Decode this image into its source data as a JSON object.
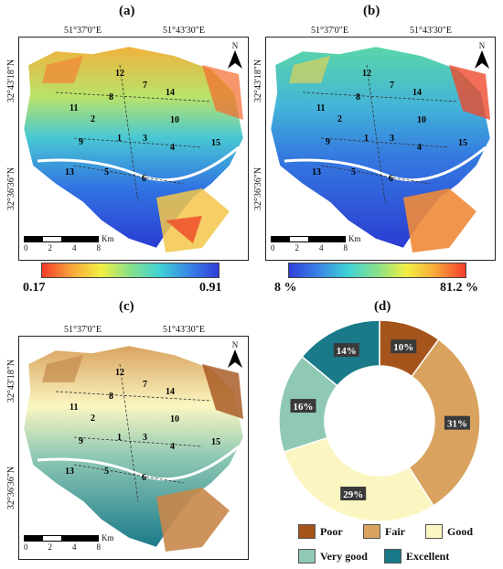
{
  "panels": {
    "a": {
      "label": "(a)"
    },
    "b": {
      "label": "(b)"
    },
    "c": {
      "label": "(c)"
    },
    "d": {
      "label": "(d)"
    }
  },
  "coords": {
    "lon1": "51°37'0\"E",
    "lon2": "51°43'30\"E",
    "lat1": "32°43'18\"N",
    "lat2": "32°36'36\"N"
  },
  "north_label": "N",
  "scale_bar": {
    "ticks": [
      "0",
      "2",
      "4",
      "8"
    ],
    "unit": "Km"
  },
  "district_numbers": [
    "1",
    "2",
    "3",
    "4",
    "5",
    "6",
    "7",
    "8",
    "9",
    "10",
    "11",
    "12",
    "13",
    "14",
    "15"
  ],
  "colorbar_a": {
    "min_label": "0.17",
    "max_label": "0.91",
    "colors": [
      "#f53b2a",
      "#f7a53a",
      "#f3ef43",
      "#88e08a",
      "#3fd2d6",
      "#3a84e6",
      "#2f3fd8"
    ]
  },
  "colorbar_b": {
    "min_label": "8 %",
    "max_label": "81.2 %",
    "colors": [
      "#2f3fd8",
      "#3a84e6",
      "#3fd2d6",
      "#88e08a",
      "#f3ef43",
      "#f7a53a",
      "#f53b2a"
    ]
  },
  "chart_data": {
    "type": "pie",
    "subtype": "donut",
    "categories": [
      "Poor",
      "Fair",
      "Good",
      "Very good",
      "Excellent"
    ],
    "values": [
      10,
      31,
      29,
      16,
      14
    ],
    "value_labels": [
      "10%",
      "31%",
      "29%",
      "16%",
      "14%"
    ],
    "colors": [
      "#a5541b",
      "#d9a35f",
      "#fbf6c1",
      "#8fc9b4",
      "#1a7a8a"
    ],
    "legend_rows": [
      [
        "Poor",
        "Fair",
        "Good"
      ],
      [
        "Very good",
        "Excellent"
      ]
    ]
  }
}
